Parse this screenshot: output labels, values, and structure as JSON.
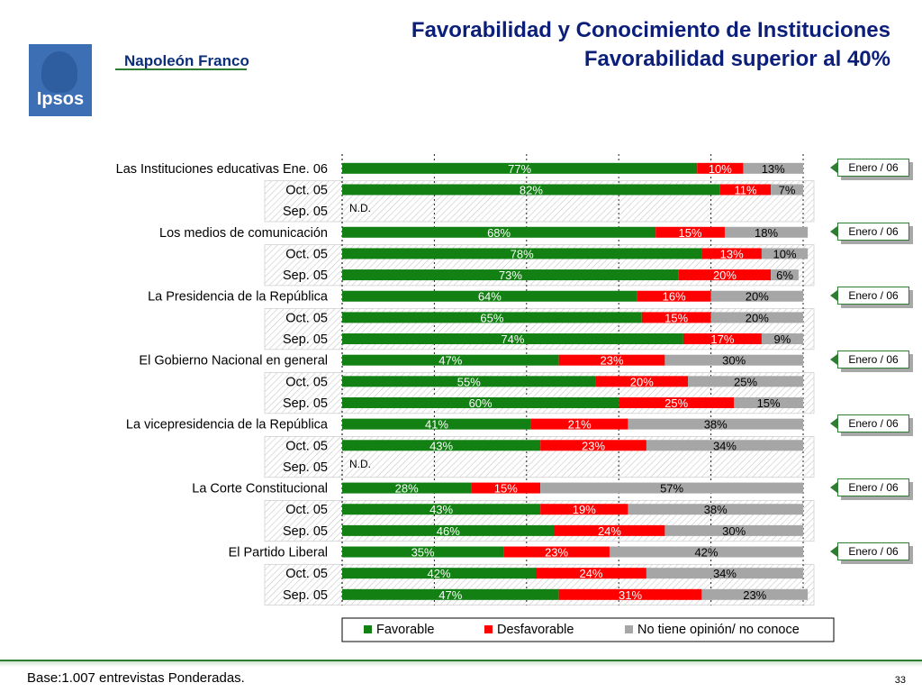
{
  "header": {
    "title_line1": "Favorabilidad y Conocimiento de Instituciones",
    "title_line2": "Favorabilidad superior al 40%",
    "logo_text": "Ipsos",
    "brand_name": "Napoleón Franco"
  },
  "footer": {
    "base_note": "Base:1.007 entrevistas Ponderadas.",
    "page_number": "33"
  },
  "colors": {
    "favorable": "#128012",
    "desfavorable": "#ff0000",
    "no_opinion": "#a6a6a6"
  },
  "chart_data": {
    "type": "bar",
    "orientation": "horizontal",
    "stacked": true,
    "xlim": [
      0,
      100
    ],
    "series_names": [
      "Favorable",
      "Desfavorable",
      "No tiene opinión/ no conoce"
    ],
    "nd_label": "N.D.",
    "callout_label": "Enero / 06",
    "rows": [
      {
        "label": "Las Instituciones educativas Ene. 06",
        "values": [
          77,
          10,
          13
        ],
        "current": true
      },
      {
        "label": "Oct. 05",
        "values": [
          82,
          11,
          7
        ]
      },
      {
        "label": "Sep. 05",
        "values": null
      },
      {
        "label": "Los medios de comunicación",
        "values": [
          68,
          15,
          18
        ],
        "current": true
      },
      {
        "label": "Oct. 05",
        "values": [
          78,
          13,
          10
        ]
      },
      {
        "label": "Sep. 05",
        "values": [
          73,
          20,
          6
        ]
      },
      {
        "label": "La Presidencia de la República",
        "values": [
          64,
          16,
          20
        ],
        "current": true
      },
      {
        "label": "Oct. 05",
        "values": [
          65,
          15,
          20
        ]
      },
      {
        "label": "Sep. 05",
        "values": [
          74,
          17,
          9
        ]
      },
      {
        "label": "El Gobierno Nacional en general",
        "values": [
          47,
          23,
          30
        ],
        "current": true
      },
      {
        "label": "Oct. 05",
        "values": [
          55,
          20,
          25
        ]
      },
      {
        "label": "Sep. 05",
        "values": [
          60,
          25,
          15
        ]
      },
      {
        "label": "La vicepresidencia de la República",
        "values": [
          41,
          21,
          38
        ],
        "current": true
      },
      {
        "label": "Oct. 05",
        "values": [
          43,
          23,
          34
        ]
      },
      {
        "label": "Sep. 05",
        "values": null
      },
      {
        "label": "La Corte Constitucional",
        "values": [
          28,
          15,
          57
        ],
        "current": true
      },
      {
        "label": "Oct. 05",
        "values": [
          43,
          19,
          38
        ]
      },
      {
        "label": "Sep. 05",
        "values": [
          46,
          24,
          30
        ]
      },
      {
        "label": "El Partido Liberal",
        "values": [
          35,
          23,
          42
        ],
        "current": true
      },
      {
        "label": "Oct. 05",
        "values": [
          42,
          24,
          34
        ]
      },
      {
        "label": "Sep. 05",
        "values": [
          47,
          31,
          23
        ]
      }
    ]
  }
}
